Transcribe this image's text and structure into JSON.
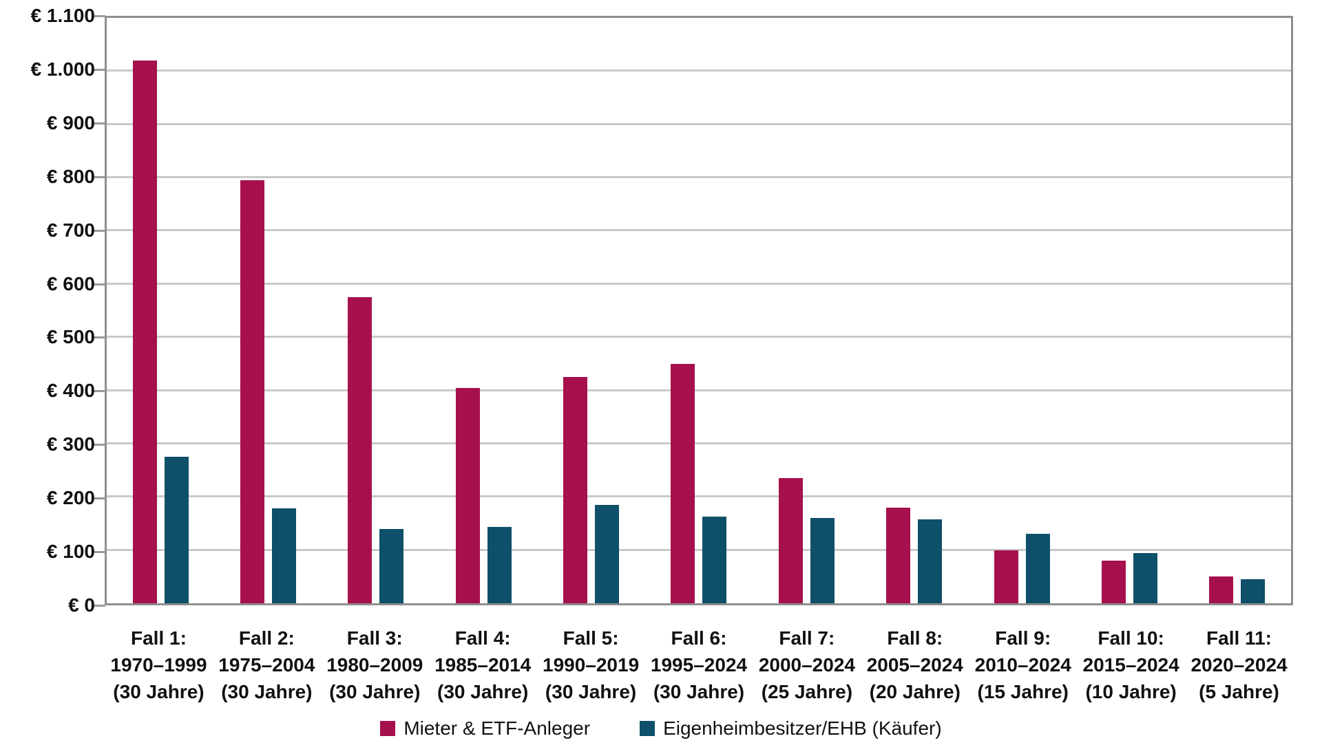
{
  "chart_data": {
    "type": "bar",
    "title": "",
    "currency_prefix": "€",
    "categories": [
      {
        "case": "Fall 1:",
        "period": "1970–1999",
        "duration": "(30 Jahre)"
      },
      {
        "case": "Fall 2:",
        "period": "1975–2004",
        "duration": "(30 Jahre)"
      },
      {
        "case": "Fall 3:",
        "period": "1980–2009",
        "duration": "(30 Jahre)"
      },
      {
        "case": "Fall 4:",
        "period": "1985–2014",
        "duration": "(30 Jahre)"
      },
      {
        "case": "Fall 5:",
        "period": "1990–2019",
        "duration": "(30 Jahre)"
      },
      {
        "case": "Fall 6:",
        "period": "1995–2024",
        "duration": "(30 Jahre)"
      },
      {
        "case": "Fall 7:",
        "period": "2000–2024",
        "duration": "(25 Jahre)"
      },
      {
        "case": "Fall 8:",
        "period": "2005–2024",
        "duration": "(20 Jahre)"
      },
      {
        "case": "Fall 9:",
        "period": "2010–2024",
        "duration": "(15 Jahre)"
      },
      {
        "case": "Fall 10:",
        "period": "2015–2024",
        "duration": "(10 Jahre)"
      },
      {
        "case": "Fall 11:",
        "period": "2020–2024",
        "duration": "(5 Jahre)"
      }
    ],
    "series": [
      {
        "name": "Mieter & ETF-Anleger",
        "color": "#a5104d",
        "values": [
          1020,
          795,
          575,
          405,
          425,
          450,
          235,
          180,
          100,
          80,
          50
        ]
      },
      {
        "name": "Eigenheimbesitzer/EHB (Käufer)",
        "color": "#0e4f69",
        "values": [
          275,
          178,
          140,
          143,
          185,
          163,
          160,
          158,
          130,
          95,
          45
        ]
      }
    ],
    "y_axis": {
      "min": 0,
      "max": 1100,
      "step": 100,
      "ticks": [
        {
          "value": 0,
          "label": "€ 0"
        },
        {
          "value": 100,
          "label": "€ 100"
        },
        {
          "value": 200,
          "label": "€ 200"
        },
        {
          "value": 300,
          "label": "€ 300"
        },
        {
          "value": 400,
          "label": "€ 400"
        },
        {
          "value": 500,
          "label": "€ 500"
        },
        {
          "value": 600,
          "label": "€ 600"
        },
        {
          "value": 700,
          "label": "€ 700"
        },
        {
          "value": 800,
          "label": "€ 800"
        },
        {
          "value": 900,
          "label": "€ 900"
        },
        {
          "value": 1000,
          "label": "€ 1.000"
        },
        {
          "value": 1100,
          "label": "€ 1.100"
        }
      ]
    },
    "grid": true,
    "legend_position": "bottom",
    "colors": {
      "gridline": "#c9c9c9",
      "axis_border": "#8e8e8e",
      "text": "#111111",
      "background": "#ffffff"
    }
  }
}
